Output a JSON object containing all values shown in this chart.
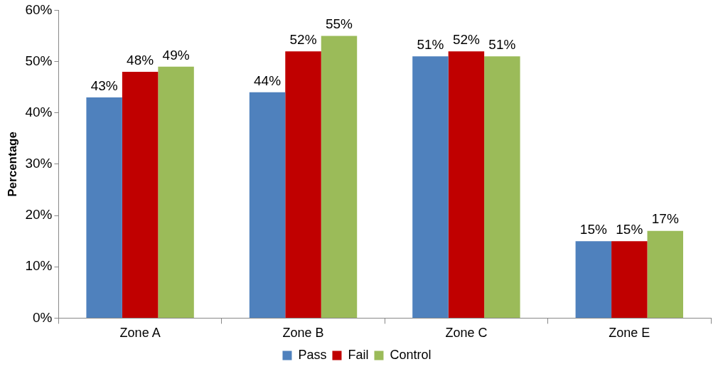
{
  "chart_data": {
    "type": "bar",
    "ylabel": "Percentage",
    "categories": [
      "Zone A",
      "Zone B",
      "Zone C",
      "Zone E"
    ],
    "series": [
      {
        "name": "Pass",
        "color": "#4f81bd",
        "values": [
          43,
          44,
          51,
          15
        ],
        "value_labels": [
          "43%",
          "44%",
          "51%",
          "15%"
        ]
      },
      {
        "name": "Fail",
        "color": "#c00000",
        "values": [
          48,
          52,
          52,
          15
        ],
        "value_labels": [
          "48%",
          "52%",
          "52%",
          "15%"
        ]
      },
      {
        "name": "Control",
        "color": "#9bbb59",
        "values": [
          49,
          55,
          51,
          17
        ],
        "value_labels": [
          "49%",
          "55%",
          "51%",
          "17%"
        ]
      }
    ],
    "ylim": [
      0,
      60
    ],
    "yticks": [
      {
        "value": 0,
        "label": "0%"
      },
      {
        "value": 10,
        "label": "10%"
      },
      {
        "value": 20,
        "label": "20%"
      },
      {
        "value": 30,
        "label": "30%"
      },
      {
        "value": 40,
        "label": "40%"
      },
      {
        "value": 50,
        "label": "50%"
      },
      {
        "value": 60,
        "label": "60%"
      }
    ],
    "legend": "bottom"
  }
}
